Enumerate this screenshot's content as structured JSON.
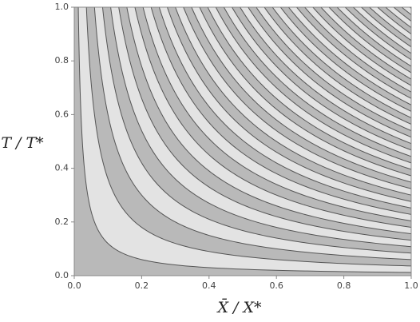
{
  "chart_data": {
    "type": "contour",
    "xlabel": "X̄ / X*",
    "ylabel": "T / T*",
    "xlim": [
      0,
      1
    ],
    "ylim": [
      0,
      1
    ],
    "xticks": [
      {
        "value": 0,
        "label": "0.0"
      },
      {
        "value": 0.2,
        "label": "0.2"
      },
      {
        "value": 0.4,
        "label": "0.4"
      },
      {
        "value": 0.6,
        "label": "0.6"
      },
      {
        "value": 0.8,
        "label": "0.8"
      },
      {
        "value": 1,
        "label": "1.0"
      }
    ],
    "yticks": [
      {
        "value": 0,
        "label": "0.0"
      },
      {
        "value": 0.2,
        "label": "0.2"
      },
      {
        "value": 0.4,
        "label": "0.4"
      },
      {
        "value": 0.6,
        "label": "0.6"
      },
      {
        "value": 0.8,
        "label": "0.8"
      },
      {
        "value": 1,
        "label": "1.0"
      }
    ],
    "levels": [
      0.012,
      0.036,
      0.06,
      0.084,
      0.108,
      0.132,
      0.156,
      0.18,
      0.204,
      0.228,
      0.252,
      0.276,
      0.3,
      0.324,
      0.348,
      0.372,
      0.396,
      0.42,
      0.444,
      0.468,
      0.492,
      0.516,
      0.54,
      0.564,
      0.588,
      0.612,
      0.636,
      0.66,
      0.684,
      0.708,
      0.732,
      0.756,
      0.78,
      0.804,
      0.828,
      0.852,
      0.876,
      0.9,
      0.924,
      0.948,
      0.972,
      0.996
    ],
    "colors": [
      "#b9b9b9",
      "#e3e3e3"
    ],
    "line_color": "#555555"
  }
}
